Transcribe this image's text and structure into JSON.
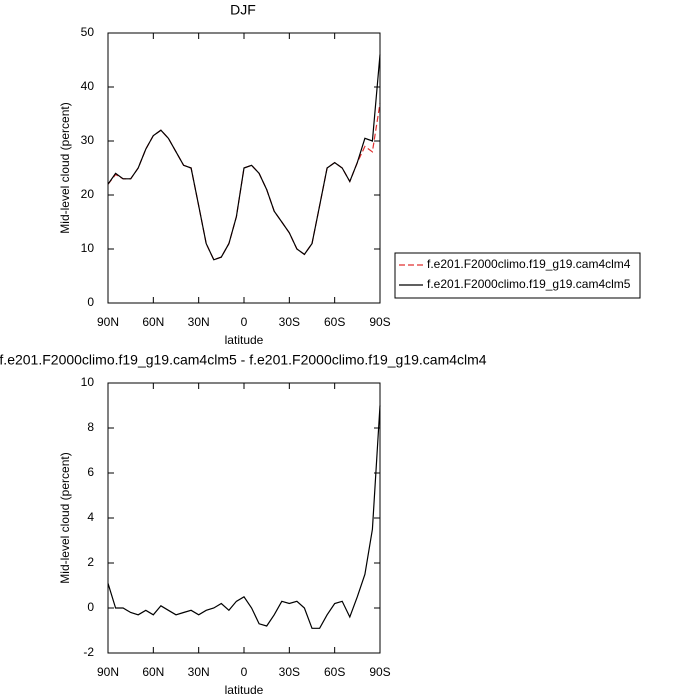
{
  "chart_data": [
    {
      "type": "line",
      "title": "DJF",
      "xlabel": "latitude",
      "ylabel": "Mid-level cloud (percent)",
      "x": [
        90,
        85,
        80,
        75,
        70,
        65,
        60,
        55,
        50,
        45,
        40,
        35,
        30,
        25,
        20,
        15,
        10,
        5,
        0,
        -5,
        -10,
        -15,
        -20,
        -25,
        -30,
        -35,
        -40,
        -45,
        -50,
        -55,
        -60,
        -65,
        -70,
        -75,
        -80,
        -85,
        -90
      ],
      "xlim": [
        90,
        -90
      ],
      "xticks": [
        {
          "value": 90,
          "label": "90N"
        },
        {
          "value": 60,
          "label": "60N"
        },
        {
          "value": 30,
          "label": "30N"
        },
        0,
        {
          "value": -30,
          "label": "30S"
        },
        {
          "value": -60,
          "label": "60S"
        },
        {
          "value": -90,
          "label": "90S"
        }
      ],
      "ylim": [
        0,
        50
      ],
      "yticks": [
        0,
        10,
        20,
        30,
        40,
        50
      ],
      "series": [
        {
          "name": "f.e201.F2000climo.f19_g19.cam4clm4",
          "color": "#e03030",
          "style": "dashed",
          "values": [
            22,
            23.8,
            23,
            23,
            25,
            28.5,
            31,
            32,
            30.5,
            28,
            25.5,
            25,
            18,
            11,
            8,
            8.5,
            11,
            16,
            25,
            25.5,
            24,
            21,
            17,
            15,
            13,
            10,
            9,
            11,
            18,
            25,
            26,
            25,
            22.5,
            26,
            29,
            28,
            37
          ]
        },
        {
          "name": "f.e201.F2000climo.f19_g19.cam4clm5",
          "color": "#000000",
          "style": "solid",
          "values": [
            22,
            24,
            23,
            23,
            25,
            28.5,
            31,
            32,
            30.5,
            28,
            25.5,
            25,
            18,
            11,
            8,
            8.5,
            11,
            16,
            25,
            25.5,
            24,
            21,
            17,
            15,
            13,
            10,
            9,
            11,
            18,
            25,
            26,
            25,
            22.5,
            26,
            30.5,
            30,
            46
          ]
        }
      ]
    },
    {
      "type": "line",
      "title": "f.e201.F2000climo.f19_g19.cam4clm5 - f.e201.F2000climo.f19_g19.cam4clm4",
      "xlabel": "latitude",
      "ylabel": "Mid-level cloud (percent)",
      "x": [
        90,
        85,
        80,
        75,
        70,
        65,
        60,
        55,
        50,
        45,
        40,
        35,
        30,
        25,
        20,
        15,
        10,
        5,
        0,
        -5,
        -10,
        -15,
        -20,
        -25,
        -30,
        -35,
        -40,
        -45,
        -50,
        -55,
        -60,
        -65,
        -70,
        -75,
        -80,
        -85,
        -90
      ],
      "xlim": [
        90,
        -90
      ],
      "xticks": [
        {
          "value": 90,
          "label": "90N"
        },
        {
          "value": 60,
          "label": "60N"
        },
        {
          "value": 30,
          "label": "30N"
        },
        0,
        {
          "value": -30,
          "label": "30S"
        },
        {
          "value": -60,
          "label": "60S"
        },
        {
          "value": -90,
          "label": "90S"
        }
      ],
      "ylim": [
        -2,
        10
      ],
      "yticks": [
        -2,
        0,
        2,
        4,
        6,
        8,
        10
      ],
      "color": "#000000",
      "values": [
        1.1,
        0,
        0,
        -0.2,
        -0.3,
        -0.1,
        -0.3,
        0.1,
        -0.1,
        -0.3,
        -0.2,
        -0.1,
        -0.3,
        -0.1,
        0,
        0.2,
        -0.1,
        0.3,
        0.5,
        0,
        -0.7,
        -0.8,
        -0.3,
        0.3,
        0.2,
        0.3,
        0,
        -0.9,
        -0.9,
        -0.3,
        0.2,
        0.3,
        -0.4,
        0.5,
        1.5,
        3.5,
        9
      ]
    }
  ]
}
